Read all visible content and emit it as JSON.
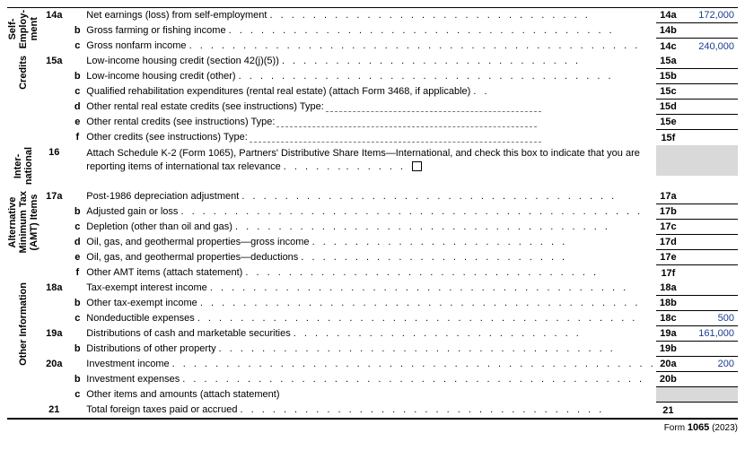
{
  "footer": {
    "prefix": "Form",
    "form_no": "1065",
    "year": "(2023)"
  },
  "colors": {
    "value_color": "#1a3d8f",
    "shade": "#d9d9d9"
  },
  "sections": [
    {
      "label": "Self-\nEmploy-\nment",
      "rows": [
        {
          "num": "14a",
          "sub": "",
          "text": "Net earnings (loss) from self-employment",
          "dots": 30,
          "code": "14a",
          "amount": "172,000"
        },
        {
          "num": "",
          "sub": "b",
          "text": "Gross farming or fishing income",
          "dots": 36,
          "code": "14b",
          "amount": ""
        },
        {
          "num": "",
          "sub": "c",
          "text": "Gross nonfarm income",
          "dots": 42,
          "code": "14c",
          "amount": "240,000"
        }
      ]
    },
    {
      "label": "Credits",
      "rows": [
        {
          "num": "15a",
          "sub": "",
          "text": "Low-income housing credit (section 42(j)(5))",
          "dots": 28,
          "code": "15a",
          "amount": ""
        },
        {
          "num": "",
          "sub": "b",
          "text": "Low-income housing credit (other)",
          "dots": 35,
          "code": "15b",
          "amount": ""
        },
        {
          "num": "",
          "sub": "c",
          "text": "Qualified rehabilitation expenditures (rental real estate) (attach Form 3468, if applicable)",
          "dots": 2,
          "code": "15c",
          "amount": ""
        },
        {
          "num": "",
          "sub": "d",
          "text": "Other rental real estate credits (see instructions)   Type:",
          "type_width": 240,
          "code": "15d",
          "amount": ""
        },
        {
          "num": "",
          "sub": "e",
          "text": "Other rental credits (see instructions)   Type:",
          "type_width": 290,
          "code": "15e",
          "amount": ""
        },
        {
          "num": "",
          "sub": "f",
          "text": "Other credits (see instructions)   Type:",
          "type_width": 325,
          "code": "15f",
          "amount": ""
        }
      ]
    },
    {
      "label": "Inter-\nnational",
      "rows": [
        {
          "num": "16",
          "sub": "",
          "text": "Attach Schedule K-2 (Form 1065), Partners' Distributive Share Items—International, and check this box to indicate that you are reporting items of international tax relevance",
          "wrap": true,
          "dots": 6,
          "checkbox": true,
          "code": "",
          "amount": "",
          "height": 34,
          "shaded_code": true,
          "shaded_amount": true
        }
      ]
    },
    {
      "label": "Alternative\nMinimum Tax\n(AMT) Items",
      "rows": [
        {
          "num": "17a",
          "sub": "",
          "text": "Post-1986 depreciation adjustment",
          "dots": 35,
          "code": "17a",
          "amount": ""
        },
        {
          "num": "",
          "sub": "b",
          "text": "Adjusted gain or loss",
          "dots": 43,
          "code": "17b",
          "amount": ""
        },
        {
          "num": "",
          "sub": "c",
          "text": "Depletion (other than oil and gas)",
          "dots": 35,
          "code": "17c",
          "amount": ""
        },
        {
          "num": "",
          "sub": "d",
          "text": "Oil, gas, and geothermal properties—gross income",
          "dots": 24,
          "code": "17d",
          "amount": ""
        },
        {
          "num": "",
          "sub": "e",
          "text": "Oil, gas, and geothermal properties—deductions",
          "dots": 25,
          "code": "17e",
          "amount": ""
        },
        {
          "num": "",
          "sub": "f",
          "text": "Other AMT items (attach statement)",
          "dots": 33,
          "code": "17f",
          "amount": ""
        }
      ]
    },
    {
      "label": "Other Information",
      "rows": [
        {
          "num": "18a",
          "sub": "",
          "text": "Tax-exempt interest income",
          "dots": 39,
          "code": "18a",
          "amount": ""
        },
        {
          "num": "",
          "sub": "b",
          "text": "Other tax-exempt income",
          "dots": 41,
          "code": "18b",
          "amount": ""
        },
        {
          "num": "",
          "sub": "c",
          "text": "Nondeductible expenses",
          "dots": 41,
          "code": "18c",
          "amount": "500"
        },
        {
          "num": "19a",
          "sub": "",
          "text": "Distributions of cash and marketable securities",
          "dots": 27,
          "code": "19a",
          "amount": "161,000"
        },
        {
          "num": "",
          "sub": "b",
          "text": "Distributions of other property",
          "dots": 37,
          "code": "19b",
          "amount": ""
        },
        {
          "num": "20a",
          "sub": "",
          "text": "Investment income",
          "dots": 45,
          "code": "20a",
          "amount": "200"
        },
        {
          "num": "",
          "sub": "b",
          "text": "Investment expenses",
          "dots": 43,
          "code": "20b",
          "amount": ""
        },
        {
          "num": "",
          "sub": "c",
          "text": "Other items and amounts (attach statement)",
          "dots": 0,
          "code": "",
          "amount": "",
          "shaded_code": true,
          "shaded_amount": true
        },
        {
          "num": "21",
          "sub": "",
          "text": "Total foreign taxes paid or accrued",
          "dots": 34,
          "code": "21",
          "amount": ""
        }
      ]
    }
  ]
}
